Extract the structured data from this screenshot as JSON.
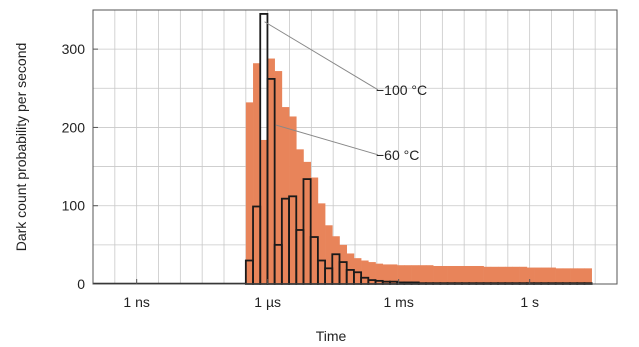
{
  "chart_data": {
    "type": "bar",
    "title": "",
    "xlabel": "Time",
    "ylabel": "Dark count probability per second",
    "x_scale": "log",
    "xlim": [
      "100 ps",
      "100 s"
    ],
    "ylim": [
      0,
      350
    ],
    "grid": true,
    "x_ticks": [
      {
        "label": "1 ns"
      },
      {
        "label": "1 µs"
      },
      {
        "label": "1 ms"
      },
      {
        "label": "1 s"
      }
    ],
    "y_ticks": [
      0,
      100,
      200,
      300
    ],
    "bin_log10_start": -6.5,
    "bin_log10_width": 0.165,
    "series": [
      {
        "name": "−60 °C",
        "style": "filled",
        "color": "#e8845a",
        "values": [
          232,
          282,
          184,
          288,
          272,
          226,
          214,
          172,
          156,
          136,
          103,
          75,
          61,
          50,
          39,
          33,
          30,
          28,
          26,
          25,
          25,
          24,
          24,
          24,
          24,
          24,
          23,
          23,
          23,
          23,
          23,
          23,
          23,
          22,
          22,
          22,
          22,
          22,
          22,
          21,
          21,
          21,
          21,
          20,
          20,
          20,
          20,
          20
        ]
      },
      {
        "name": "−100 °C",
        "style": "outline",
        "color": "#1a1a1a",
        "values": [
          30,
          99,
          345,
          262,
          50,
          109,
          112,
          69,
          134,
          60,
          30,
          20,
          38,
          28,
          18,
          15,
          8,
          5,
          4,
          3,
          3,
          2,
          2,
          2,
          1,
          1,
          1,
          1,
          1,
          1,
          1,
          1,
          1,
          1,
          1,
          1,
          1,
          1,
          1,
          1,
          1,
          1,
          1,
          1,
          1,
          1,
          1,
          1
        ]
      }
    ],
    "annotations": [
      {
        "text": "−100 °C",
        "target_series": "−100 °C"
      },
      {
        "text": "−60 °C",
        "target_series": "−60 °C"
      }
    ]
  }
}
